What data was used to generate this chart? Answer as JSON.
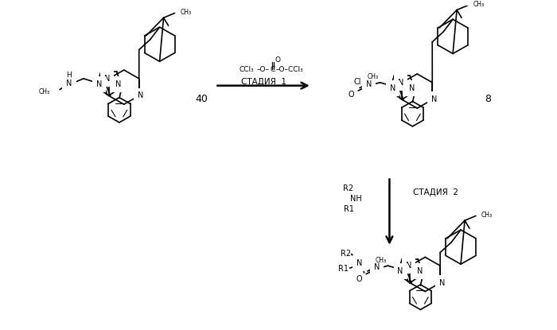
{
  "bg": "#ffffff",
  "fw": 7.0,
  "fh": 4.15,
  "dpi": 100,
  "stage1_text": "СТАДИЯ  1",
  "stage2_text": "СТАДИЯ  2",
  "label40": "40",
  "label8": "8",
  "reagent_top": "CCl₃",
  "reagent_ccl3right": "CCl₃",
  "r2_text": "R2",
  "nh_text": "NH",
  "r1_text": "R1"
}
